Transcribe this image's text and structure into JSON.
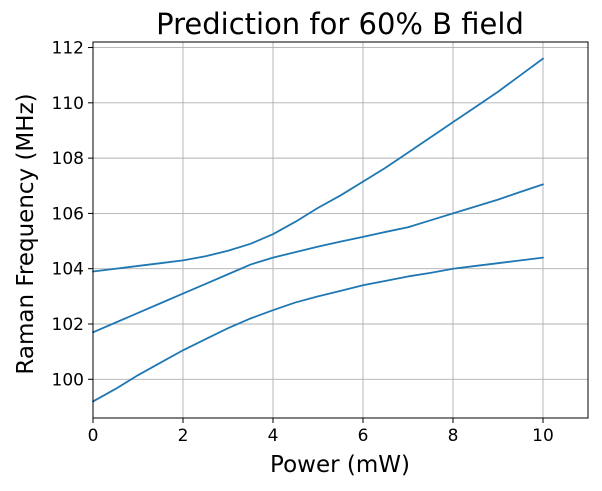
{
  "chart_data": {
    "type": "line",
    "title": "Prediction for 60% B field",
    "xlabel": "Power (mW)",
    "ylabel": "Raman Frequency (MHz)",
    "xlim": [
      0,
      11
    ],
    "ylim": [
      98.6,
      112.2
    ],
    "xticks": [
      0,
      2,
      4,
      6,
      8,
      10
    ],
    "xtick_labels": [
      "0",
      "2",
      "4",
      "6",
      "8",
      "10"
    ],
    "yticks": [
      100,
      102,
      104,
      106,
      108,
      110,
      112
    ],
    "ytick_labels": [
      "100",
      "102",
      "104",
      "106",
      "108",
      "110",
      "112"
    ],
    "grid": true,
    "legend": "none",
    "line_color": "#1f77b4",
    "x": [
      0,
      0.5,
      1,
      1.5,
      2,
      2.5,
      3,
      3.5,
      4,
      4.5,
      5,
      5.5,
      6,
      6.5,
      7,
      7.5,
      8,
      8.5,
      9,
      9.5,
      10
    ],
    "series": [
      {
        "values": [
          103.9,
          104.0,
          104.1,
          104.2,
          104.3,
          104.45,
          104.65,
          104.9,
          105.25,
          105.7,
          106.2,
          106.65,
          107.15,
          107.65,
          108.2,
          108.75,
          109.3,
          109.85,
          110.4,
          111.0,
          111.6
        ]
      },
      {
        "values": [
          101.7,
          102.05,
          102.4,
          102.75,
          103.1,
          103.45,
          103.8,
          104.15,
          104.4,
          104.6,
          104.8,
          104.98,
          105.15,
          105.33,
          105.5,
          105.75,
          106.0,
          106.25,
          106.5,
          106.78,
          107.05
        ]
      },
      {
        "values": [
          99.2,
          99.65,
          100.15,
          100.6,
          101.05,
          101.45,
          101.85,
          102.2,
          102.5,
          102.78,
          103.0,
          103.2,
          103.4,
          103.56,
          103.72,
          103.85,
          104.0,
          104.1,
          104.2,
          104.3,
          104.4
        ]
      }
    ]
  }
}
